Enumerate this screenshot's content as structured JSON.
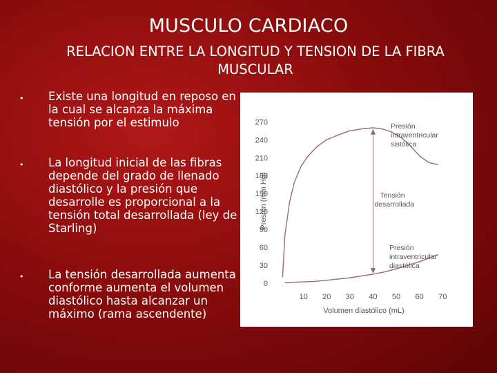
{
  "slide": {
    "title": "MUSCULO CARDIACO",
    "subtitle": "RELACION ENTRE LA LONGITUD Y TENSION DE LA FIBRA MUSCULAR"
  },
  "bullets": [
    {
      "marker": "•",
      "text": "Existe una longitud en reposo en la cual se alcanza la máxima tensión por el estimulo"
    },
    {
      "marker": "•",
      "text": "La longitud inicial de las fibras depende del grado de llenado diastólico y la presión que desarrolle es proporcional a la tensión total desarrollada (ley de Starling)"
    },
    {
      "marker": "•",
      "text": "La tensión desarrollada aumenta conforme aumenta el volumen diastólico hasta alcanzar un máximo (rama ascendente)"
    }
  ],
  "chart_data": {
    "type": "line",
    "xlabel": "Volumen diastólico (mL)",
    "ylabel": "Presión (mm Hg)",
    "x_ticks": [
      10,
      20,
      30,
      40,
      50,
      60,
      70
    ],
    "y_ticks": [
      0,
      30,
      60,
      90,
      120,
      150,
      180,
      210,
      240,
      270
    ],
    "xlim": [
      0,
      72
    ],
    "ylim": [
      0,
      275
    ],
    "series": [
      {
        "name": "Presión intraventricular sistólica",
        "color": "#9a6a6a",
        "x": [
          1,
          2,
          4,
          6,
          9,
          12,
          16,
          20,
          25,
          30,
          35,
          40,
          44,
          48,
          52,
          56,
          60,
          64,
          68
        ],
        "y": [
          10,
          80,
          135,
          168,
          196,
          213,
          229,
          240,
          248,
          255,
          258,
          260,
          258,
          253,
          244,
          230,
          213,
          202,
          198
        ]
      },
      {
        "name": "Presión intraventricular diastólica",
        "color": "#9a6a6a",
        "x": [
          2,
          8,
          15,
          20,
          25,
          30,
          35,
          40,
          45,
          50,
          55,
          60,
          64,
          68
        ],
        "y": [
          1,
          2,
          3,
          5,
          7,
          9,
          12,
          15,
          19,
          24,
          30,
          36,
          42,
          48
        ]
      }
    ],
    "annotations": [
      {
        "text": "Tensión desarrollada"
      }
    ],
    "grid": false
  }
}
